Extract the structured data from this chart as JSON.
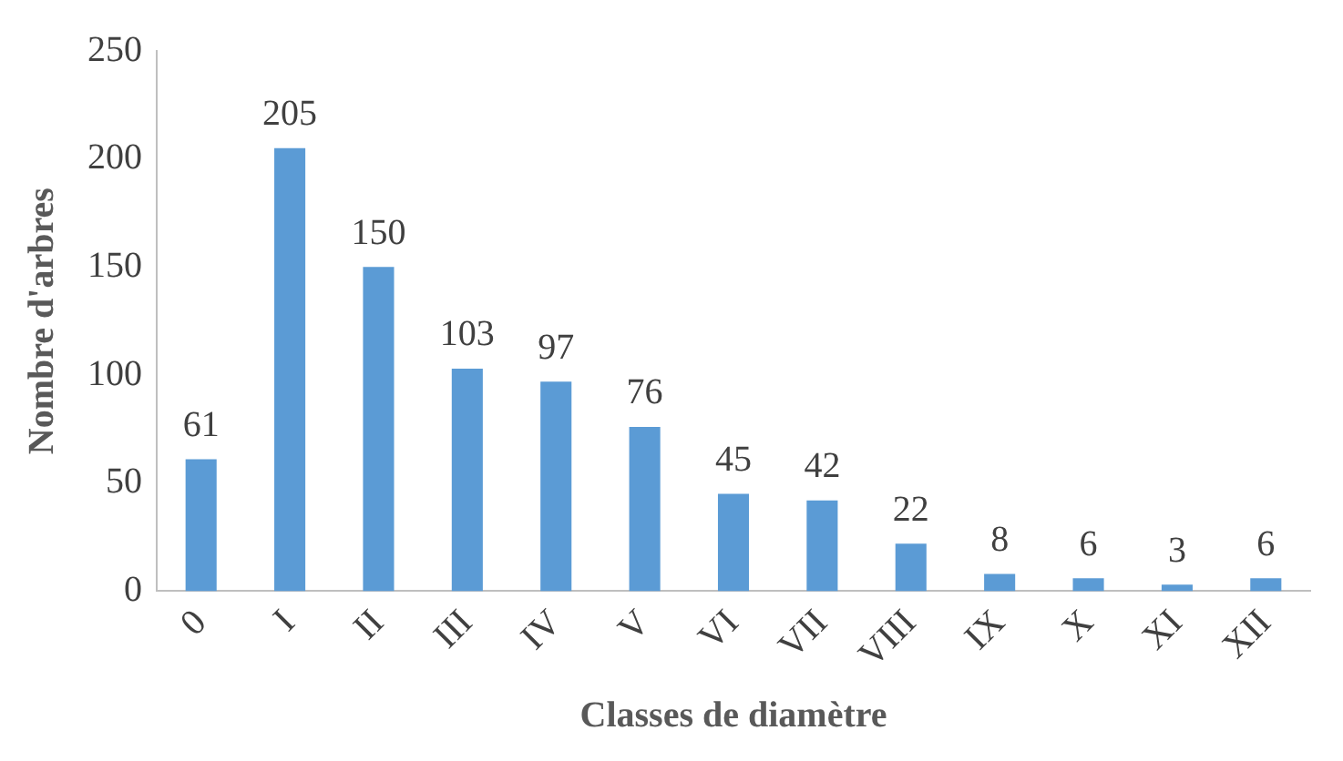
{
  "chart_data": {
    "type": "bar",
    "xlabel": "Classes de diamètre",
    "ylabel": "Nombre d'arbres",
    "categories": [
      "0",
      "I",
      "II",
      "III",
      "IV",
      "V",
      "VI",
      "VII",
      "VIII",
      "IX",
      "X",
      "XI",
      "XII"
    ],
    "values": [
      61,
      205,
      150,
      103,
      97,
      76,
      45,
      42,
      22,
      8,
      6,
      3,
      6
    ],
    "color": "#5b9bd5",
    "ylim": [
      0,
      250
    ],
    "yticks": [
      0,
      50,
      100,
      150,
      200,
      250
    ],
    "grid": false,
    "legend": false,
    "data_labels": true
  }
}
